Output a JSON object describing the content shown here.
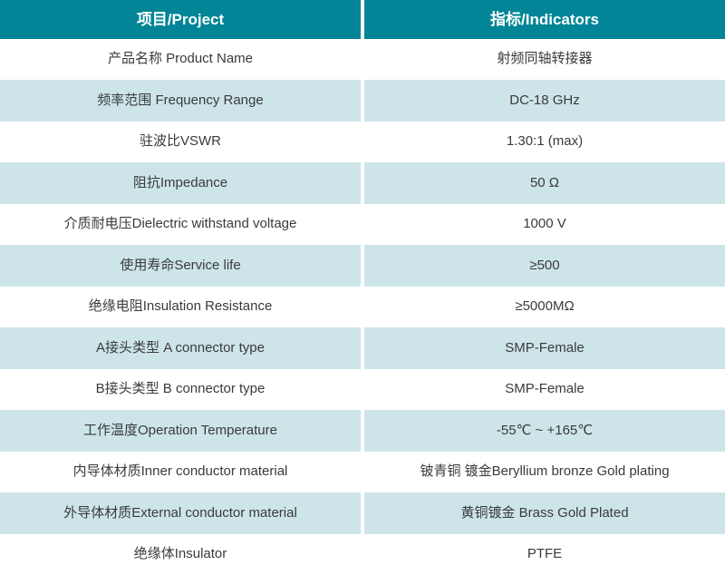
{
  "table": {
    "header": {
      "project_label": "项目/Project",
      "indicators_label": "指标/Indicators"
    },
    "rows": [
      {
        "project": "产品名称 Product Name",
        "indicator": "射频同轴转接器"
      },
      {
        "project": "频率范围 Frequency Range",
        "indicator": "DC-18 GHz"
      },
      {
        "project": "驻波比VSWR",
        "indicator": "1.30:1 (max)"
      },
      {
        "project": "阻抗Impedance",
        "indicator": "50 Ω"
      },
      {
        "project": "介质耐电压Dielectric withstand voltage",
        "indicator": "1000 V"
      },
      {
        "project": "使用寿命Service life",
        "indicator": "≥500"
      },
      {
        "project": "绝缘电阻Insulation Resistance",
        "indicator": "≥5000MΩ"
      },
      {
        "project": "A接头类型 A connector type",
        "indicator": "SMP-Female"
      },
      {
        "project": "B接头类型 B connector type",
        "indicator": "SMP-Female"
      },
      {
        "project": "工作温度Operation Temperature",
        "indicator": "-55℃ ~ +165℃"
      },
      {
        "project": "内导体材质Inner conductor material",
        "indicator": "铍青铜 镀金Beryllium bronze Gold plating"
      },
      {
        "project": "外导体材质External conductor material",
        "indicator": "黄铜镀金 Brass Gold Plated"
      },
      {
        "project": "绝缘体Insulator",
        "indicator": "PTFE"
      }
    ],
    "colors": {
      "header_bg": "#028597",
      "header_text": "#ffffff",
      "row_bg_white": "#ffffff",
      "row_bg_alt": "#cde5e9",
      "body_text": "#3a3a3a",
      "divider": "#ffffff"
    }
  }
}
